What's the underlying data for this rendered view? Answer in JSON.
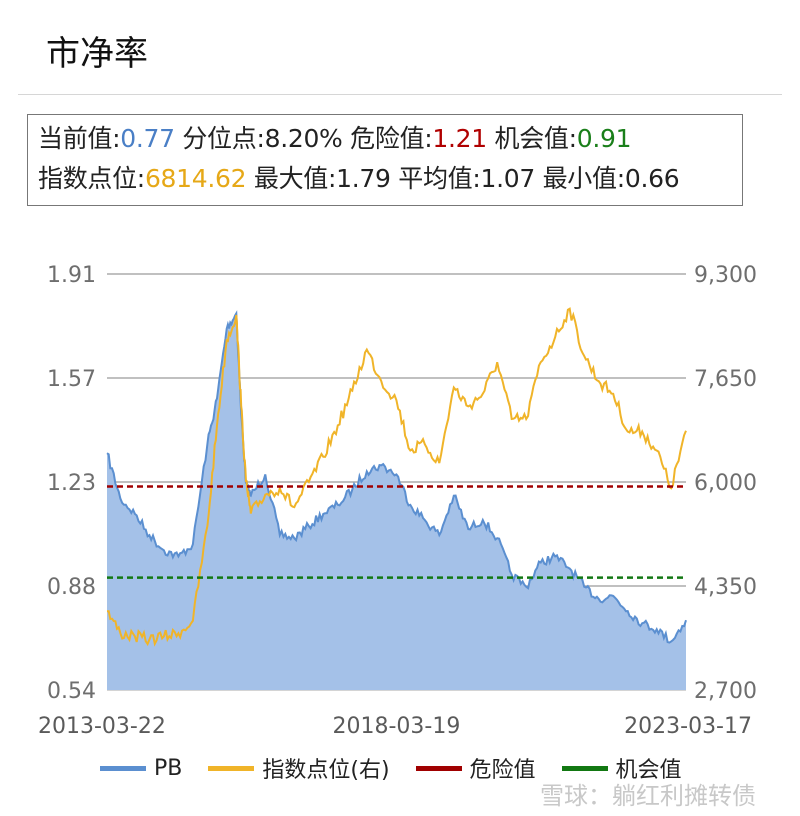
{
  "title": "市净率",
  "summary": {
    "current_label": "当前值:",
    "current_value": "0.77",
    "percentile_label": "分位点:",
    "percentile_value": "8.20%",
    "danger_label": "危险值:",
    "danger_value": "1.21",
    "opportunity_label": "机会值:",
    "opportunity_value": "0.91",
    "index_label": "指数点位:",
    "index_value": "6814.62",
    "max_label": "最大值:",
    "max_value": "1.79",
    "avg_label": "平均值:",
    "avg_value": "1.07",
    "min_label": "最小值:",
    "min_value": "0.66"
  },
  "watermark": "雪球：躺红利摊转债",
  "colors": {
    "pb": "#5b8fd0",
    "pb_fill": "#a4c1e8",
    "index": "#f0b429",
    "danger": "#a00000",
    "opportunity": "#127812"
  },
  "chart_data": {
    "type": "line",
    "x_ticks": [
      "2013-03-22",
      "2018-03-19",
      "2023-03-17"
    ],
    "y_left_ticks": [
      "1.91",
      "1.57",
      "1.23",
      "0.88",
      "0.54"
    ],
    "y_right_ticks": [
      "9,300",
      "7,650",
      "6,000",
      "4,350",
      "2,700"
    ],
    "y_left_range": [
      0.54,
      1.91
    ],
    "y_right_range": [
      2700,
      9300
    ],
    "x_range": [
      "2013-03-22",
      "2023-03-17"
    ],
    "grid": true,
    "legend_position": "bottom",
    "series": [
      {
        "name": "PB",
        "axis": "left",
        "style": "area",
        "x": [
          "2013-03-22",
          "2013-06",
          "2013-09",
          "2013-12",
          "2014-03",
          "2014-06",
          "2014-09",
          "2014-12",
          "2015-02",
          "2015-04",
          "2015-06",
          "2015-07",
          "2015-08",
          "2015-09",
          "2015-12",
          "2016-03",
          "2016-06",
          "2016-09",
          "2016-12",
          "2017-03",
          "2017-06",
          "2017-09",
          "2017-12",
          "2018-03-19",
          "2018-06",
          "2018-09",
          "2018-12",
          "2019-03",
          "2019-06",
          "2019-09",
          "2019-12",
          "2020-03",
          "2020-06",
          "2020-09",
          "2020-12",
          "2021-03",
          "2021-06",
          "2021-09",
          "2021-12",
          "2022-03",
          "2022-06",
          "2022-09",
          "2022-12",
          "2023-03-17"
        ],
        "values": [
          1.32,
          1.17,
          1.12,
          1.05,
          1.0,
          0.98,
          1.02,
          1.35,
          1.5,
          1.73,
          1.78,
          1.45,
          1.22,
          1.18,
          1.25,
          1.05,
          1.04,
          1.08,
          1.12,
          1.15,
          1.2,
          1.26,
          1.28,
          1.25,
          1.15,
          1.1,
          1.05,
          1.18,
          1.07,
          1.1,
          1.04,
          0.92,
          0.88,
          0.96,
          0.98,
          0.94,
          0.88,
          0.84,
          0.85,
          0.8,
          0.76,
          0.74,
          0.7,
          0.77
        ]
      },
      {
        "name": "指数点位(右)",
        "axis": "right",
        "style": "line",
        "x": [
          "2013-03-22",
          "2013-06",
          "2013-09",
          "2013-12",
          "2014-03",
          "2014-06",
          "2014-09",
          "2014-12",
          "2015-02",
          "2015-04",
          "2015-06",
          "2015-07",
          "2015-08",
          "2015-09",
          "2015-12",
          "2016-03",
          "2016-06",
          "2016-09",
          "2016-12",
          "2017-03",
          "2017-06",
          "2017-09",
          "2017-12",
          "2018-03-19",
          "2018-06",
          "2018-09",
          "2018-12",
          "2019-03",
          "2019-06",
          "2019-09",
          "2019-12",
          "2020-03",
          "2020-06",
          "2020-09",
          "2020-12",
          "2021-03",
          "2021-06",
          "2021-09",
          "2021-12",
          "2022-03",
          "2022-06",
          "2022-09",
          "2022-12",
          "2023-03-17"
        ],
        "values": [
          3950,
          3600,
          3550,
          3500,
          3550,
          3600,
          3800,
          5300,
          6900,
          8250,
          8650,
          7200,
          6000,
          5500,
          5800,
          5900,
          5600,
          6000,
          6400,
          6900,
          7450,
          8100,
          7600,
          7300,
          6500,
          6600,
          6300,
          7500,
          7200,
          7400,
          7900,
          7000,
          7000,
          7900,
          8300,
          8750,
          8000,
          7600,
          7400,
          6800,
          6800,
          6500,
          5900,
          6814.62
        ]
      },
      {
        "name": "危险值",
        "axis": "left",
        "style": "dashed",
        "value": 1.21
      },
      {
        "name": "机会值",
        "axis": "left",
        "style": "dashed",
        "value": 0.91
      }
    ]
  }
}
